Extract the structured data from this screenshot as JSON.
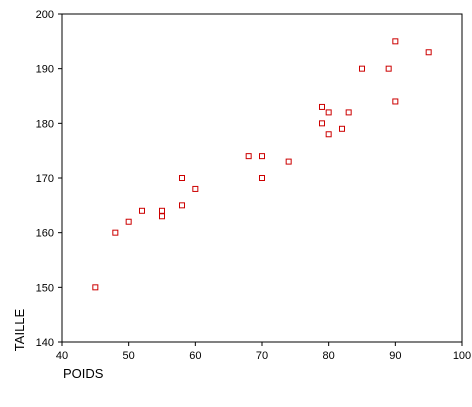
{
  "chart_data": {
    "type": "scatter",
    "xlabel": "POIDS",
    "ylabel": "TAILLE",
    "xlim": [
      40,
      100
    ],
    "ylim": [
      140,
      200
    ],
    "xticks": [
      40,
      50,
      60,
      70,
      80,
      90,
      100
    ],
    "yticks": [
      140,
      150,
      160,
      170,
      180,
      190,
      200
    ],
    "xtick_labels": [
      "40",
      "50",
      "60",
      "70",
      "80",
      "90",
      "100"
    ],
    "ytick_labels": [
      "140",
      "150",
      "160",
      "170",
      "180",
      "190",
      "200"
    ],
    "grid": false,
    "marker": "open-square",
    "marker_color": "#cc0000",
    "points": [
      {
        "x": 45,
        "y": 150
      },
      {
        "x": 48,
        "y": 160
      },
      {
        "x": 50,
        "y": 162
      },
      {
        "x": 52,
        "y": 164
      },
      {
        "x": 55,
        "y": 164
      },
      {
        "x": 55,
        "y": 163
      },
      {
        "x": 58,
        "y": 170
      },
      {
        "x": 58,
        "y": 165
      },
      {
        "x": 60,
        "y": 168
      },
      {
        "x": 68,
        "y": 174
      },
      {
        "x": 70,
        "y": 174
      },
      {
        "x": 70,
        "y": 170
      },
      {
        "x": 74,
        "y": 173
      },
      {
        "x": 79,
        "y": 183
      },
      {
        "x": 79,
        "y": 180
      },
      {
        "x": 80,
        "y": 182
      },
      {
        "x": 80,
        "y": 178
      },
      {
        "x": 82,
        "y": 179
      },
      {
        "x": 83,
        "y": 182
      },
      {
        "x": 85,
        "y": 190
      },
      {
        "x": 89,
        "y": 190
      },
      {
        "x": 90,
        "y": 195
      },
      {
        "x": 90,
        "y": 184
      },
      {
        "x": 95,
        "y": 193
      }
    ]
  }
}
